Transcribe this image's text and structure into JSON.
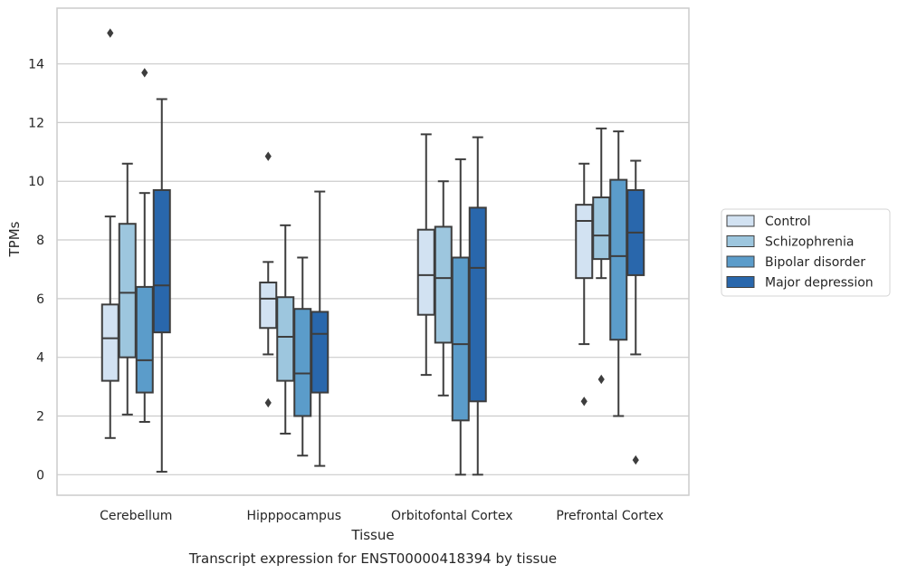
{
  "caption": "Transcript expression for ENST00000418394 by tissue",
  "chart_data": {
    "type": "box",
    "xlabel": "Tissue",
    "ylabel": "TPMs",
    "ylim": [
      -0.7,
      15.9
    ],
    "yticks": [
      0,
      2,
      4,
      6,
      8,
      10,
      12,
      14
    ],
    "grid": "horizontal",
    "legend_position": "right",
    "categories": [
      "Cerebellum",
      "Hipppocampus",
      "Orbitofontal Cortex",
      "Prefrontal Cortex"
    ],
    "series": [
      {
        "name": "Control",
        "color": "#d2e2f2",
        "boxes": [
          {
            "whisker_low": 1.25,
            "q1": 3.2,
            "median": 4.65,
            "q3": 5.8,
            "whisker_high": 8.8,
            "outliers": []
          },
          {
            "whisker_low": 4.1,
            "q1": 5.0,
            "median": 6.0,
            "q3": 6.55,
            "whisker_high": 7.25,
            "outliers": [
              10.85,
              2.45
            ]
          },
          {
            "whisker_low": 3.4,
            "q1": 5.45,
            "median": 6.8,
            "q3": 8.35,
            "whisker_high": 11.6,
            "outliers": []
          },
          {
            "whisker_low": 4.45,
            "q1": 6.7,
            "median": 8.65,
            "q3": 9.2,
            "whisker_high": 10.6,
            "outliers": [
              2.5
            ]
          }
        ]
      },
      {
        "name": "Schizophrenia",
        "color": "#9dc6de",
        "boxes": [
          {
            "whisker_low": 2.05,
            "q1": 4.0,
            "median": 6.2,
            "q3": 8.55,
            "whisker_high": 10.6,
            "outliers": []
          },
          {
            "whisker_low": 1.4,
            "q1": 3.2,
            "median": 4.7,
            "q3": 6.05,
            "whisker_high": 8.5,
            "outliers": []
          },
          {
            "whisker_low": 2.7,
            "q1": 4.5,
            "median": 6.7,
            "q3": 8.45,
            "whisker_high": 10.0,
            "outliers": []
          },
          {
            "whisker_low": 6.7,
            "q1": 7.35,
            "median": 8.15,
            "q3": 9.45,
            "whisker_high": 11.8,
            "outliers": [
              3.25
            ]
          }
        ]
      },
      {
        "name": "Bipolar disorder",
        "color": "#5b9cca",
        "boxes": [
          {
            "whisker_low": 1.8,
            "q1": 2.8,
            "median": 3.9,
            "q3": 6.4,
            "whisker_high": 9.6,
            "outliers": [
              13.7
            ]
          },
          {
            "whisker_low": 0.65,
            "q1": 2.0,
            "median": 3.45,
            "q3": 5.65,
            "whisker_high": 7.4,
            "outliers": []
          },
          {
            "whisker_low": 0.0,
            "q1": 1.85,
            "median": 4.45,
            "q3": 7.4,
            "whisker_high": 10.75,
            "outliers": []
          },
          {
            "whisker_low": 2.0,
            "q1": 4.6,
            "median": 7.45,
            "q3": 10.05,
            "whisker_high": 11.7,
            "outliers": []
          }
        ]
      },
      {
        "name": "Major depression",
        "color": "#2967ac",
        "boxes": [
          {
            "whisker_low": 0.1,
            "q1": 4.85,
            "median": 6.45,
            "q3": 9.7,
            "whisker_high": 12.8,
            "outliers": []
          },
          {
            "whisker_low": 0.3,
            "q1": 2.8,
            "median": 4.8,
            "q3": 5.55,
            "whisker_high": 9.65,
            "outliers": []
          },
          {
            "whisker_low": 0.0,
            "q1": 2.5,
            "median": 7.05,
            "q3": 9.1,
            "whisker_high": 11.5,
            "outliers": []
          },
          {
            "whisker_low": 4.1,
            "q1": 6.8,
            "median": 8.25,
            "q3": 9.7,
            "whisker_high": 10.7,
            "outliers": [
              0.5
            ]
          }
        ]
      }
    ],
    "extra_outliers": [
      {
        "category": "Cerebellum",
        "series": "Control",
        "value": 15.05
      }
    ]
  }
}
